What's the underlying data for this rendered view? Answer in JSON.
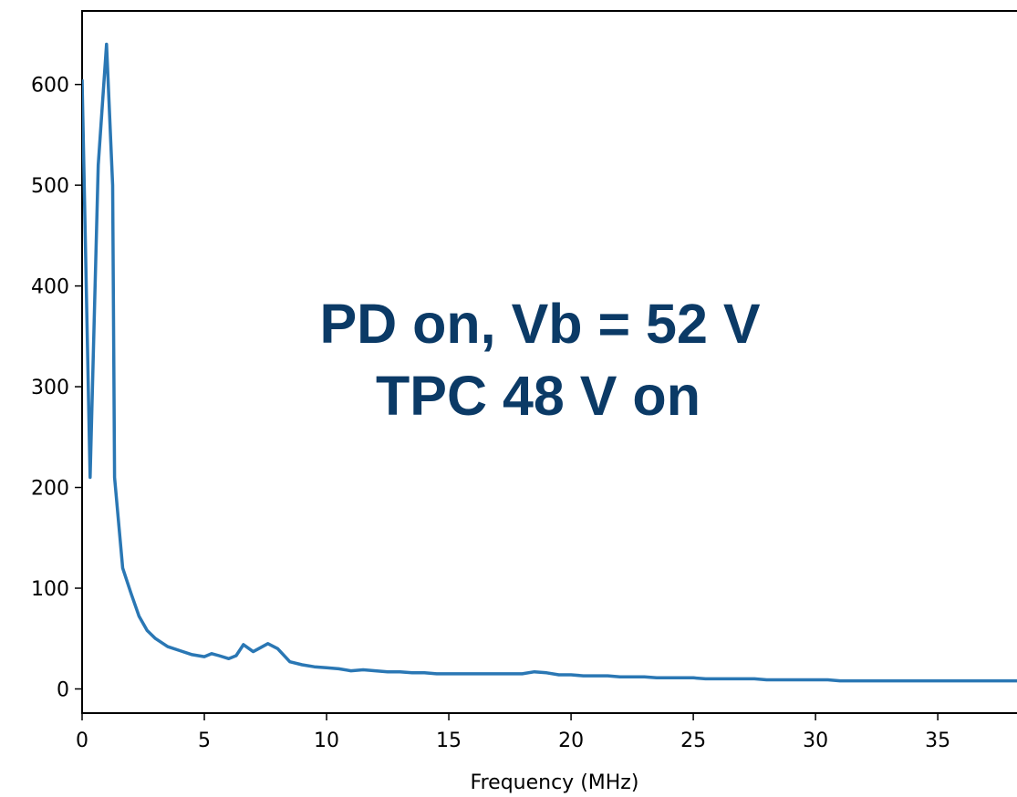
{
  "chart_data": {
    "type": "line",
    "xlabel": "Frequency (MHz)",
    "ylabel": "",
    "xlim": [
      0,
      38.8
    ],
    "ylim": [
      -24,
      673
    ],
    "xticks": [
      0,
      5,
      10,
      15,
      20,
      25,
      30,
      35
    ],
    "xtick_labels": [
      "0",
      "5",
      "10",
      "15",
      "20",
      "25",
      "30",
      "35"
    ],
    "yticks": [
      0,
      100,
      200,
      300,
      400,
      500,
      600
    ],
    "ytick_labels": [
      "0",
      "100",
      "200",
      "300",
      "400",
      "500",
      "600"
    ],
    "grid": false,
    "line_color": "#2a77b4",
    "annotation_color": "#0b3a66",
    "annotation": [
      "PD on, Vb = 52 V",
      "TPC 48 V on"
    ],
    "series": [
      {
        "x": [
          0,
          0.33,
          0.66,
          1.0,
          1.25,
          1.33,
          1.66,
          2.0,
          2.33,
          2.66,
          3.0,
          3.5,
          4.0,
          4.5,
          5.0,
          5.3,
          5.6,
          6.0,
          6.3,
          6.6,
          7.0,
          7.3,
          7.6,
          8.0,
          8.5,
          9.0,
          9.5,
          10.0,
          10.5,
          11.0,
          11.5,
          12.0,
          12.5,
          13.0,
          13.5,
          14.0,
          14.5,
          15.0,
          15.5,
          16.0,
          16.5,
          17.0,
          17.5,
          18.0,
          18.5,
          19.0,
          19.5,
          20.0,
          20.5,
          21.0,
          21.5,
          22.0,
          22.5,
          23.0,
          23.5,
          24.0,
          24.5,
          25.0,
          25.5,
          26.0,
          26.5,
          27.0,
          27.5,
          28.0,
          28.5,
          29.0,
          29.5,
          30.0,
          30.5,
          31.0,
          31.5,
          32.0,
          32.5,
          33.0,
          33.5,
          34.0,
          34.5,
          35.0,
          35.5,
          36.0,
          36.5,
          37.0,
          37.5,
          38.0,
          38.5,
          38.8
        ],
        "y": [
          605,
          210,
          520,
          640,
          500,
          210,
          120,
          95,
          72,
          58,
          50,
          42,
          38,
          34,
          32,
          35,
          33,
          30,
          33,
          44,
          37,
          41,
          45,
          40,
          27,
          24,
          22,
          21,
          20,
          18,
          19,
          18,
          17,
          17,
          16,
          16,
          15,
          15,
          15,
          15,
          15,
          15,
          15,
          15,
          17,
          16,
          14,
          14,
          13,
          13,
          13,
          12,
          12,
          12,
          11,
          11,
          11,
          11,
          10,
          10,
          10,
          10,
          10,
          9,
          9,
          9,
          9,
          9,
          9,
          8,
          8,
          8,
          8,
          8,
          8,
          8,
          8,
          8,
          8,
          8,
          8,
          8,
          8,
          8,
          8,
          8
        ]
      }
    ]
  }
}
